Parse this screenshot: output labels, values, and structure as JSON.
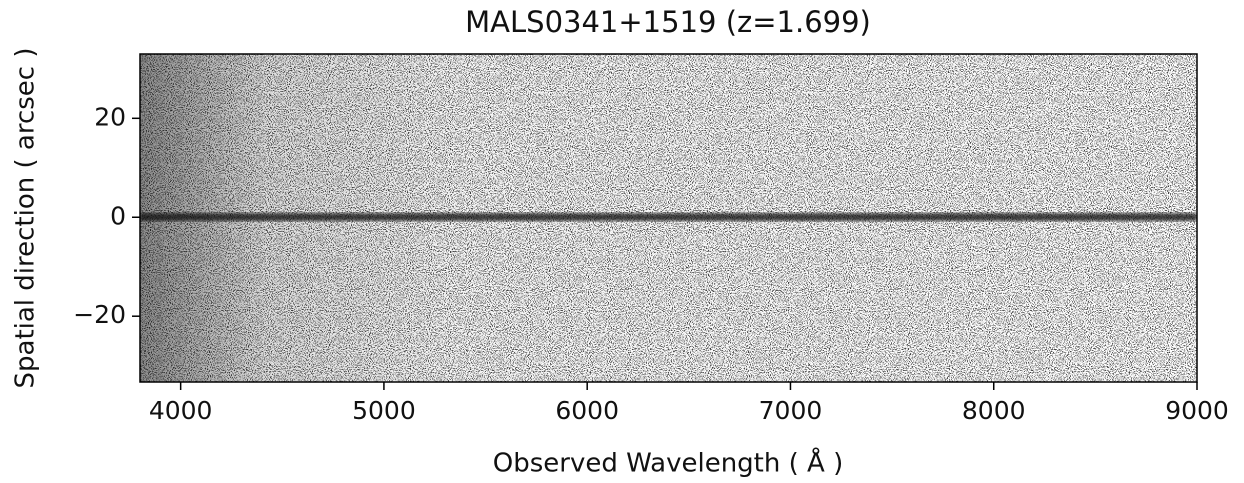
{
  "chart_data": {
    "type": "spectrum2d",
    "title": "MALS0341+1519   (z=1.699)",
    "xlabel": "Observed Wavelength  ( Å )",
    "ylabel": "Spatial direction ( arcsec )",
    "xlim": [
      3800,
      9000
    ],
    "xticks": [
      4000,
      5000,
      6000,
      7000,
      8000,
      9000
    ],
    "ylim": [
      -33.3,
      33
    ],
    "yticks": [
      {
        "value": -20,
        "label": "−20"
      },
      0,
      20
    ],
    "colormap": "gray_r"
  }
}
